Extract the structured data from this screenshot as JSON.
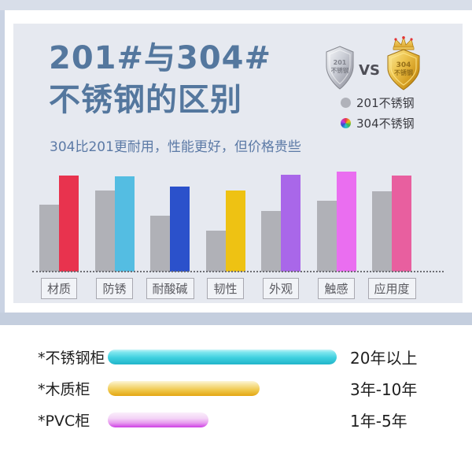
{
  "header": {
    "title_line1": "201#与304#",
    "title_line2": "不锈钢的区别",
    "subtitle": "304比201更耐用，性能更好，但价格贵些",
    "vs_label": "VS",
    "silver_shield": {
      "line1": "201",
      "line2": "不锈钢"
    },
    "gold_shield": {
      "line1": "304",
      "line2": "不锈钢"
    }
  },
  "legend": {
    "items": [
      {
        "label": "201不锈钢",
        "swatch": "gray"
      },
      {
        "label": "304不锈钢",
        "swatch": "rainbow"
      }
    ]
  },
  "chart_data": [
    {
      "type": "bar",
      "categories": [
        "材质",
        "防锈",
        "耐酸碱",
        "韧性",
        "外观",
        "触感",
        "应用度"
      ],
      "series": [
        {
          "name": "201不锈钢",
          "values": [
            67,
            81,
            56,
            41,
            61,
            71,
            80
          ],
          "color": "#b0b1b7"
        },
        {
          "name": "304不锈钢",
          "values": [
            96,
            95,
            85,
            81,
            97,
            100,
            96
          ],
          "colors": [
            "#e8334e",
            "#54bde2",
            "#2b51cb",
            "#eec213",
            "#a967e9",
            "#ea6ef0",
            "#e85f9f"
          ]
        }
      ],
      "ylim": [
        0,
        100
      ],
      "grid": false,
      "axis_style": "dotted-baseline",
      "legend_position": "top-right"
    },
    {
      "type": "bar",
      "orientation": "horizontal",
      "categories": [
        "*不锈钢柜",
        "*木质柜",
        "*PVC柜"
      ],
      "values": [
        291,
        193,
        128
      ],
      "value_labels": [
        "20年以上",
        "3年-10年",
        "1年-5年"
      ],
      "bar_styles": [
        "cyan",
        "gold",
        "pink"
      ]
    }
  ],
  "colors": {
    "title_text": "#54779e",
    "subtitle_text": "#5c7aa6",
    "card_bg": "#e6e9f0",
    "page_bg": "#ffffff",
    "top_band": "#d8dee9",
    "left_strip": "#cad3e3",
    "divider_band": "#c4cede",
    "gray_bar": "#b0b1b7",
    "legend_gray_dot": "#b0b2ba",
    "category_box_border": "#a8a8b0",
    "category_box_text": "#5a5a60",
    "bottom_text": "#1f1f1f",
    "cyan_bar_main": "#3fd0df",
    "gold_bar_main": "#f0c94e",
    "pink_bar_main": "#ce3fe4"
  }
}
